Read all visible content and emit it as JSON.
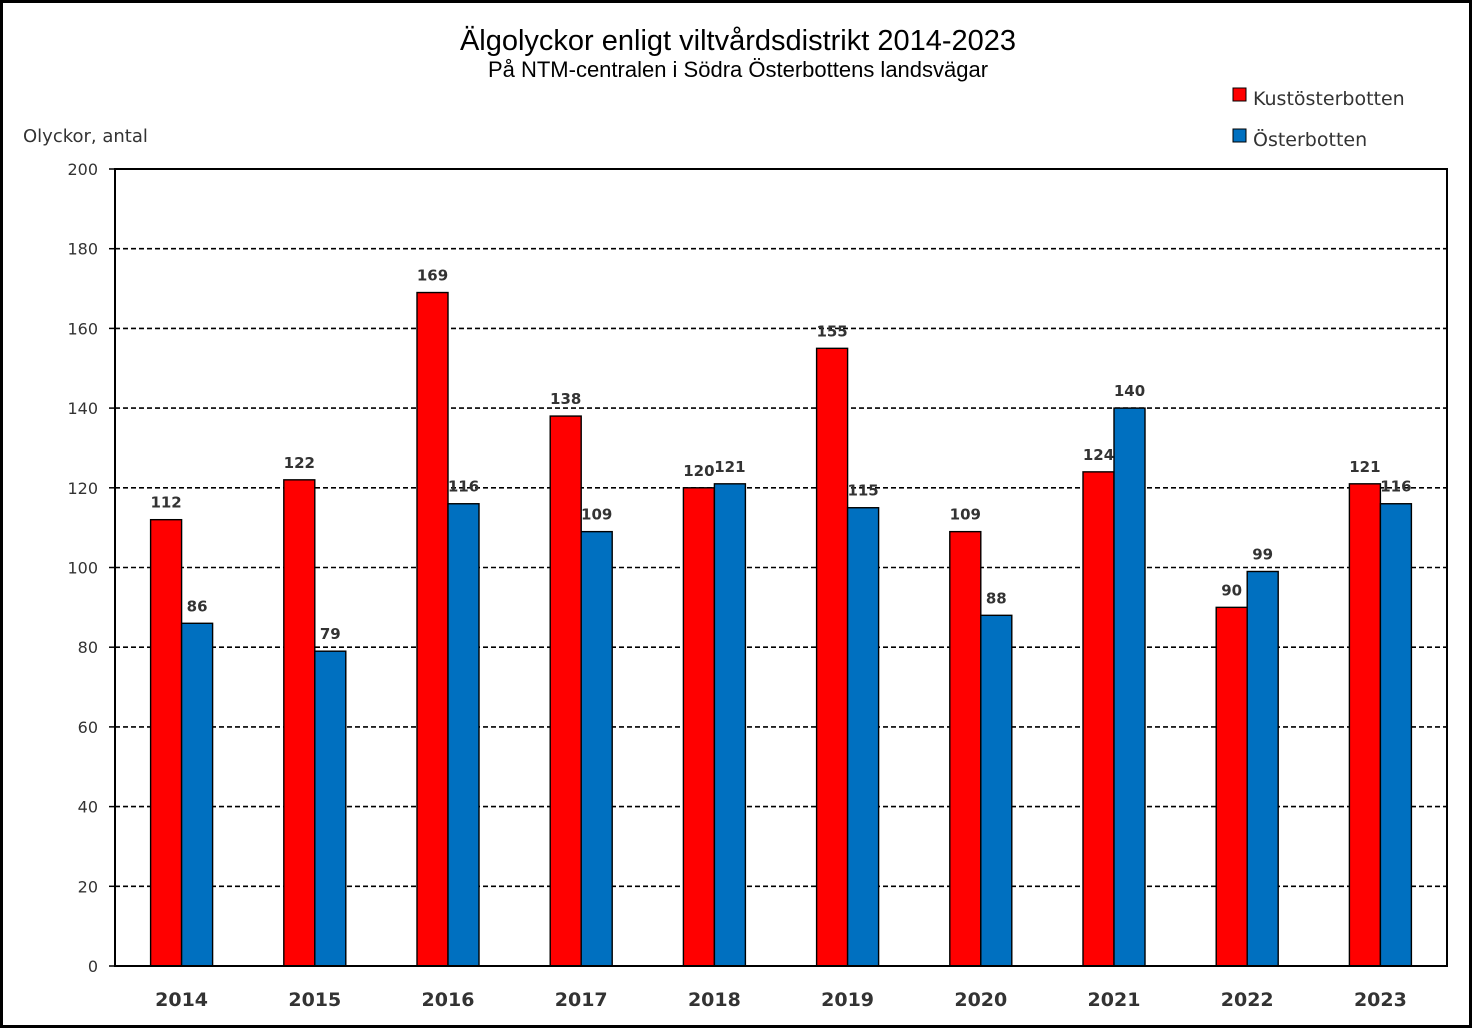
{
  "chart_data": {
    "type": "bar",
    "title": "Älgolyckor enligt viltvårdsdistrikt 2014-2023",
    "subtitle": "På NTM-centralen i Södra Österbottens landsvägar",
    "xlabel": "",
    "ylabel": "Olyckor, antal",
    "ylim": [
      0,
      200
    ],
    "yticks": [
      0,
      20,
      40,
      60,
      80,
      100,
      120,
      140,
      160,
      180,
      200
    ],
    "grid": true,
    "legend_position": "top-right",
    "categories": [
      "2014",
      "2015",
      "2016",
      "2017",
      "2018",
      "2019",
      "2020",
      "2021",
      "2022",
      "2023"
    ],
    "series": [
      {
        "name": "Kustösterbotten",
        "color": "#ff0000",
        "values": [
          112,
          122,
          169,
          138,
          120,
          155,
          109,
          124,
          90,
          121
        ]
      },
      {
        "name": "Österbotten",
        "color": "#0070c0",
        "values": [
          86,
          79,
          116,
          109,
          121,
          115,
          88,
          140,
          99,
          116
        ]
      }
    ]
  }
}
